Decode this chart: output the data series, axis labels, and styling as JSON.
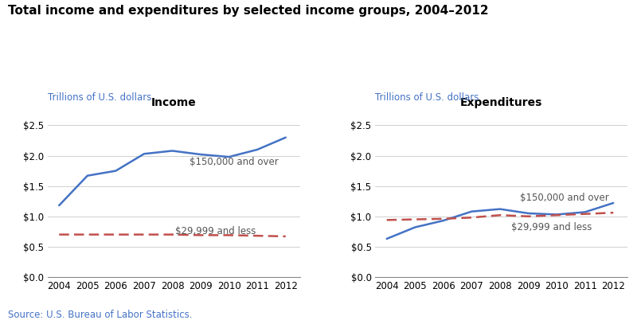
{
  "title": "Total income and expenditures by selected income groups, 2004–2012",
  "subtitle": "Trillions of U.S. dollars",
  "source": "Source: U.S. Bureau of Labor Statistics.",
  "years": [
    2004,
    2005,
    2006,
    2007,
    2008,
    2009,
    2010,
    2011,
    2012
  ],
  "income_high": [
    1.18,
    1.67,
    1.75,
    2.03,
    2.08,
    2.02,
    1.98,
    2.1,
    2.3
  ],
  "income_low": [
    0.7,
    0.7,
    0.7,
    0.7,
    0.7,
    0.69,
    0.69,
    0.68,
    0.67
  ],
  "exp_high": [
    0.63,
    0.82,
    0.93,
    1.08,
    1.12,
    1.05,
    1.03,
    1.07,
    1.22
  ],
  "exp_low": [
    0.94,
    0.95,
    0.96,
    0.98,
    1.02,
    1.0,
    1.02,
    1.04,
    1.06
  ],
  "color_high": "#4472C4",
  "color_low": "#C0504D",
  "ylim": [
    0.0,
    2.75
  ],
  "yticks": [
    0.0,
    0.5,
    1.0,
    1.5,
    2.0,
    2.5
  ],
  "left_title": "Income",
  "right_title": "Expenditures",
  "label_high": "$150,000 and over",
  "label_low": "$29,999 and less",
  "title_fontsize": 11,
  "subtitle_fontsize": 8.5,
  "axis_title_fontsize": 10,
  "label_fontsize": 8.5,
  "source_fontsize": 8.5,
  "tick_fontsize": 8.5
}
